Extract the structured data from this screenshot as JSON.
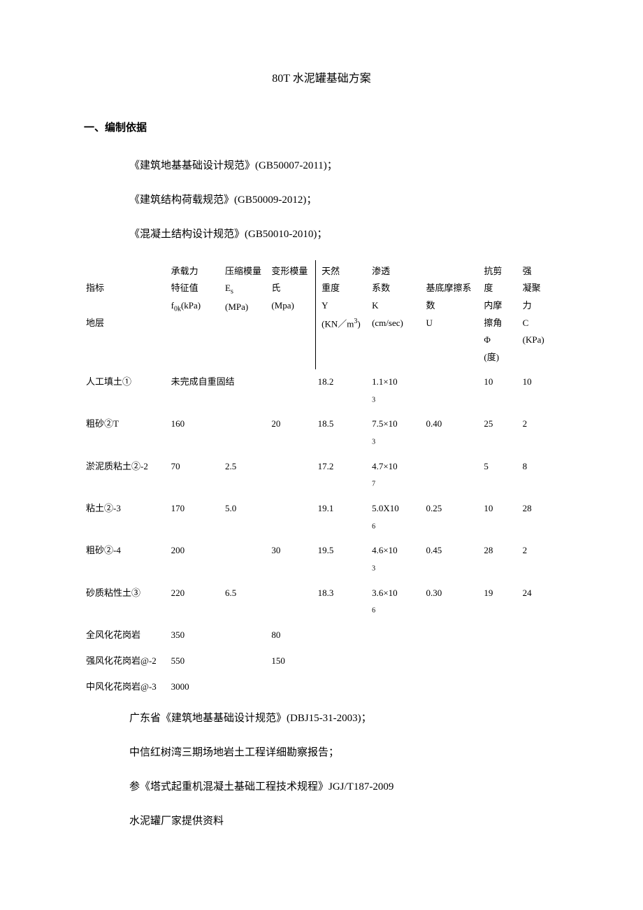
{
  "title": "80T 水泥罐基础方案",
  "section1": {
    "header": "一、编制依据",
    "refs": [
      "《建筑地基基础设计规范》(GB50007-2011)；",
      "《建筑结构荷载规范》(GB50009-2012)；",
      "《混凝土结构设计规范》(GB50010-2010)；"
    ],
    "refs_after": [
      "广东省《建筑地基基础设计规范》(DBJ15-31-2003)；",
      "中信红树湾三期场地岩土工程详细勘察报告；",
      "参《塔式起重机混凝土基础工程技术规程》JGJ/T187-2009",
      "水泥罐厂家提供资料"
    ]
  },
  "table": {
    "headers": {
      "row_label_top": "指标",
      "row_label_bottom": "地层",
      "bearing_l1": "承载力",
      "bearing_l2": "特征值",
      "bearing_l3": "f",
      "bearing_l3_sub": "0k",
      "bearing_l3_unit": "(kPa)",
      "comp_l1": "压缩模量",
      "comp_l2": "E",
      "comp_l2_sub": "s",
      "comp_l3": "(MPa)",
      "deform_l1": "变形模量",
      "deform_l2": "氏",
      "deform_l3": "(Mpa)",
      "weight_l1": "天然",
      "weight_l2": "重度",
      "weight_l3": "Y",
      "weight_l4": "(KN／m",
      "weight_l4_sup": "3",
      "weight_l4_close": ")",
      "perm_l1": "渗透",
      "perm_l2": "系数",
      "perm_l3": "K",
      "perm_l4": "(cm/sec)",
      "fric_l1": "基底摩擦系数",
      "fric_l2": "U",
      "shear_l1": "抗剪",
      "shear_l1b": "度",
      "shear_l2": "内摩",
      "shear_l3": "擦角",
      "shear_l4": "Φ",
      "shear_l5": "(度)",
      "coh_l1": "强",
      "coh_l2": "凝聚",
      "coh_l3": "力",
      "coh_l4": "C",
      "coh_l5": "(KPa)"
    },
    "rows": [
      {
        "label": "人工填土①",
        "bearing": "未完成自重固结",
        "bearing_span": 3,
        "comp": "",
        "deform": "",
        "weight": "18.2",
        "perm": "1.1×10",
        "perm_sub": "3",
        "fric": "",
        "shear": "10",
        "coh": "10"
      },
      {
        "label": "粗砂②T",
        "bearing": "160",
        "comp": "",
        "deform": "20",
        "weight": "18.5",
        "perm": "7.5×10",
        "perm_sub": "3",
        "fric": "0.40",
        "shear": "25",
        "coh": "2"
      },
      {
        "label": "淤泥质粘土②-2",
        "bearing": "70",
        "comp": "2.5",
        "deform": "",
        "weight": "17.2",
        "perm": "4.7×10",
        "perm_sub": "7",
        "fric": "",
        "shear": "5",
        "coh": "8"
      },
      {
        "label": "粘土②-3",
        "bearing": "170",
        "comp": "5.0",
        "deform": "",
        "weight": "19.1",
        "perm": "5.0X10",
        "perm_sub": "6",
        "fric": "0.25",
        "shear": "10",
        "coh": "28"
      },
      {
        "label": "粗砂②-4",
        "bearing": "200",
        "comp": "",
        "deform": "30",
        "weight": "19.5",
        "perm": "4.6×10",
        "perm_sub": "3",
        "fric": "0.45",
        "shear": "28",
        "coh": "2"
      },
      {
        "label": "砂质粘性土③",
        "bearing": "220",
        "comp": "6.5",
        "deform": "",
        "weight": "18.3",
        "perm": "3.6×10",
        "perm_sub": "6",
        "fric": "0.30",
        "shear": "19",
        "coh": "24"
      },
      {
        "label": "全风化花岗岩",
        "bearing": "350",
        "comp": "",
        "deform": "80",
        "weight": "",
        "perm": "",
        "perm_sub": "",
        "fric": "",
        "shear": "",
        "coh": ""
      },
      {
        "label": "强风化花岗岩@-2",
        "bearing": "550",
        "comp": "",
        "deform": "150",
        "weight": "",
        "perm": "",
        "perm_sub": "",
        "fric": "",
        "shear": "",
        "coh": ""
      },
      {
        "label": "中风化花岗岩@-3",
        "bearing": "3000",
        "comp": "",
        "deform": "",
        "weight": "",
        "perm": "",
        "perm_sub": "",
        "fric": "",
        "shear": "",
        "coh": ""
      }
    ]
  }
}
